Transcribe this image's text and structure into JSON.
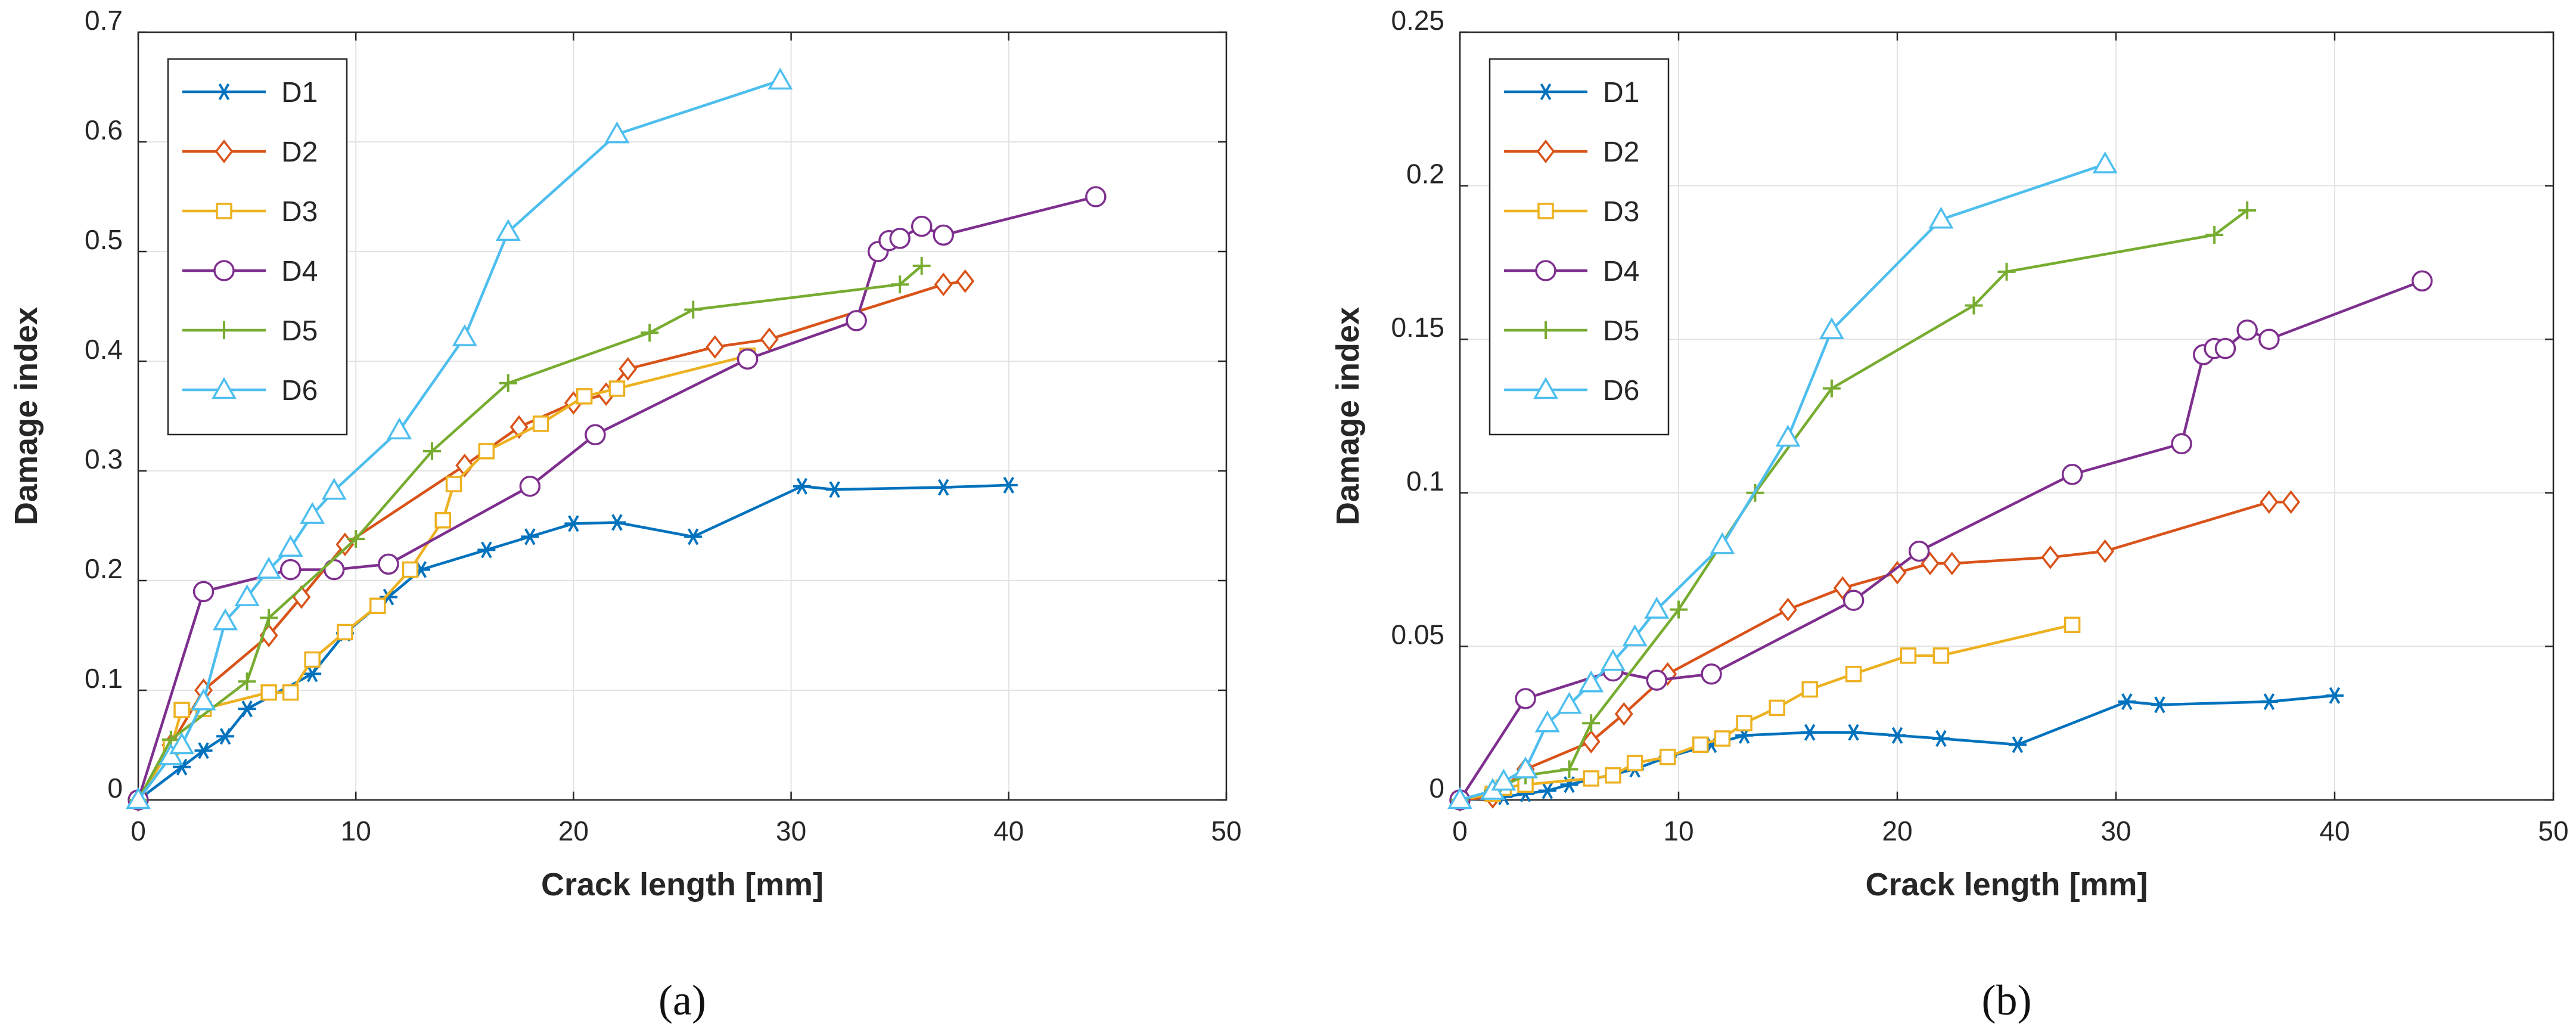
{
  "chart_data": [
    {
      "type": "line",
      "panel_label": "(a)",
      "xlabel": "Crack length [mm]",
      "ylabel": "Damage index",
      "xlim": [
        0,
        50
      ],
      "ylim": [
        0,
        0.7
      ],
      "xticks": [
        0,
        10,
        20,
        30,
        40,
        50
      ],
      "yticks": [
        0,
        0.1,
        0.2,
        0.3,
        0.4,
        0.5,
        0.6,
        0.7
      ],
      "grid": true,
      "legend_position": "top-left",
      "series": [
        {
          "name": "D1",
          "color": "#0072BD",
          "marker": "asterisk",
          "x": [
            0,
            2,
            3,
            4,
            5,
            8,
            9.5,
            11.5,
            13,
            16,
            18,
            20,
            22,
            25.5,
            30.5,
            32,
            37,
            40
          ],
          "y": [
            0,
            0.03,
            0.045,
            0.058,
            0.083,
            0.115,
            0.152,
            0.185,
            0.21,
            0.228,
            0.24,
            0.252,
            0.253,
            0.24,
            0.286,
            0.283,
            0.285,
            0.287
          ]
        },
        {
          "name": "D2",
          "color": "#D95319",
          "marker": "diamond",
          "x": [
            0,
            1.5,
            3,
            6,
            7.5,
            9.5,
            15,
            17.5,
            20,
            21.5,
            22.5,
            26.5,
            29,
            37,
            38
          ],
          "y": [
            0,
            0.05,
            0.1,
            0.15,
            0.185,
            0.233,
            0.305,
            0.34,
            0.362,
            0.37,
            0.393,
            0.413,
            0.42,
            0.47,
            0.473
          ]
        },
        {
          "name": "D3",
          "color": "#EDB120",
          "marker": "square",
          "x": [
            0,
            1.5,
            2,
            3,
            6,
            7,
            8,
            9.5,
            11,
            12.5,
            14,
            14.5,
            16,
            18.5,
            20.5,
            22,
            28
          ],
          "y": [
            0,
            0.048,
            0.082,
            0.083,
            0.098,
            0.098,
            0.128,
            0.153,
            0.177,
            0.21,
            0.255,
            0.288,
            0.318,
            0.343,
            0.368,
            0.375,
            0.405
          ]
        },
        {
          "name": "D4",
          "color": "#7E2F8E",
          "marker": "circle",
          "x": [
            0,
            3,
            7,
            9,
            11.5,
            18,
            21,
            28,
            33,
            34,
            34.5,
            35,
            36,
            37,
            44
          ],
          "y": [
            0,
            0.19,
            0.21,
            0.21,
            0.215,
            0.286,
            0.333,
            0.402,
            0.437,
            0.5,
            0.51,
            0.512,
            0.523,
            0.515,
            0.55
          ]
        },
        {
          "name": "D5",
          "color": "#77AC30",
          "marker": "plus",
          "x": [
            0,
            1.5,
            5,
            6,
            10,
            13.5,
            17,
            23.5,
            25.5,
            35,
            36
          ],
          "y": [
            0,
            0.055,
            0.108,
            0.166,
            0.238,
            0.318,
            0.38,
            0.426,
            0.447,
            0.47,
            0.487
          ]
        },
        {
          "name": "D6",
          "color": "#4DBEEE",
          "marker": "triangle",
          "x": [
            0,
            1.5,
            2,
            3,
            4,
            5,
            6,
            7,
            8,
            9,
            12,
            15,
            17,
            22,
            29.5
          ],
          "y": [
            0,
            0.04,
            0.05,
            0.09,
            0.163,
            0.185,
            0.21,
            0.23,
            0.26,
            0.282,
            0.337,
            0.422,
            0.518,
            0.607,
            0.656
          ]
        }
      ]
    },
    {
      "type": "line",
      "panel_label": "(b)",
      "xlabel": "Crack length [mm]",
      "ylabel": "Damage index",
      "xlim": [
        0,
        50
      ],
      "ylim": [
        0,
        0.25
      ],
      "xticks": [
        0,
        10,
        20,
        30,
        40,
        50
      ],
      "yticks": [
        0,
        0.05,
        0.1,
        0.15,
        0.2,
        0.25
      ],
      "grid": true,
      "legend_position": "top-left",
      "series": [
        {
          "name": "D1",
          "color": "#0072BD",
          "marker": "asterisk",
          "x": [
            0,
            2,
            3,
            4,
            5,
            8,
            9.5,
            11.5,
            13,
            16,
            18,
            20,
            22,
            25.5,
            30.5,
            32,
            37,
            40
          ],
          "y": [
            0,
            0.001,
            0.002,
            0.003,
            0.005,
            0.01,
            0.014,
            0.018,
            0.021,
            0.022,
            0.022,
            0.021,
            0.02,
            0.018,
            0.032,
            0.031,
            0.032,
            0.034
          ]
        },
        {
          "name": "D2",
          "color": "#D95319",
          "marker": "diamond",
          "x": [
            0,
            1.5,
            3,
            6,
            7.5,
            9.5,
            15,
            17.5,
            20,
            21.5,
            22.5,
            27,
            29.5,
            37,
            38
          ],
          "y": [
            0,
            0.001,
            0.01,
            0.019,
            0.028,
            0.041,
            0.062,
            0.069,
            0.074,
            0.077,
            0.077,
            0.079,
            0.081,
            0.097,
            0.097
          ]
        },
        {
          "name": "D3",
          "color": "#EDB120",
          "marker": "square",
          "x": [
            0,
            1.5,
            2,
            3,
            6,
            7,
            8,
            9.5,
            11,
            12,
            13,
            14.5,
            16,
            18,
            20.5,
            22,
            28
          ],
          "y": [
            0,
            0.002,
            0.004,
            0.005,
            0.007,
            0.008,
            0.012,
            0.014,
            0.018,
            0.02,
            0.025,
            0.03,
            0.036,
            0.041,
            0.047,
            0.047,
            0.057
          ]
        },
        {
          "name": "D4",
          "color": "#7E2F8E",
          "marker": "circle",
          "x": [
            0,
            3,
            7,
            9,
            11.5,
            18,
            21,
            28,
            33,
            34,
            34.5,
            35,
            36,
            37,
            44
          ],
          "y": [
            0,
            0.033,
            0.042,
            0.039,
            0.041,
            0.065,
            0.081,
            0.106,
            0.116,
            0.145,
            0.147,
            0.147,
            0.153,
            0.15,
            0.169
          ]
        },
        {
          "name": "D5",
          "color": "#77AC30",
          "marker": "plus",
          "x": [
            0,
            1.5,
            3,
            5,
            6,
            10,
            13.5,
            17,
            23.5,
            25,
            34.5,
            36
          ],
          "y": [
            0,
            0.003,
            0.008,
            0.01,
            0.025,
            0.062,
            0.1,
            0.134,
            0.161,
            0.172,
            0.184,
            0.192
          ]
        },
        {
          "name": "D6",
          "color": "#4DBEEE",
          "marker": "triangle",
          "x": [
            0,
            1.5,
            2,
            3,
            4,
            5,
            6,
            7,
            8,
            9,
            12,
            15,
            17,
            22,
            29.5
          ],
          "y": [
            0,
            0.003,
            0.006,
            0.01,
            0.025,
            0.031,
            0.038,
            0.045,
            0.053,
            0.062,
            0.083,
            0.118,
            0.153,
            0.189,
            0.207
          ]
        }
      ]
    }
  ]
}
